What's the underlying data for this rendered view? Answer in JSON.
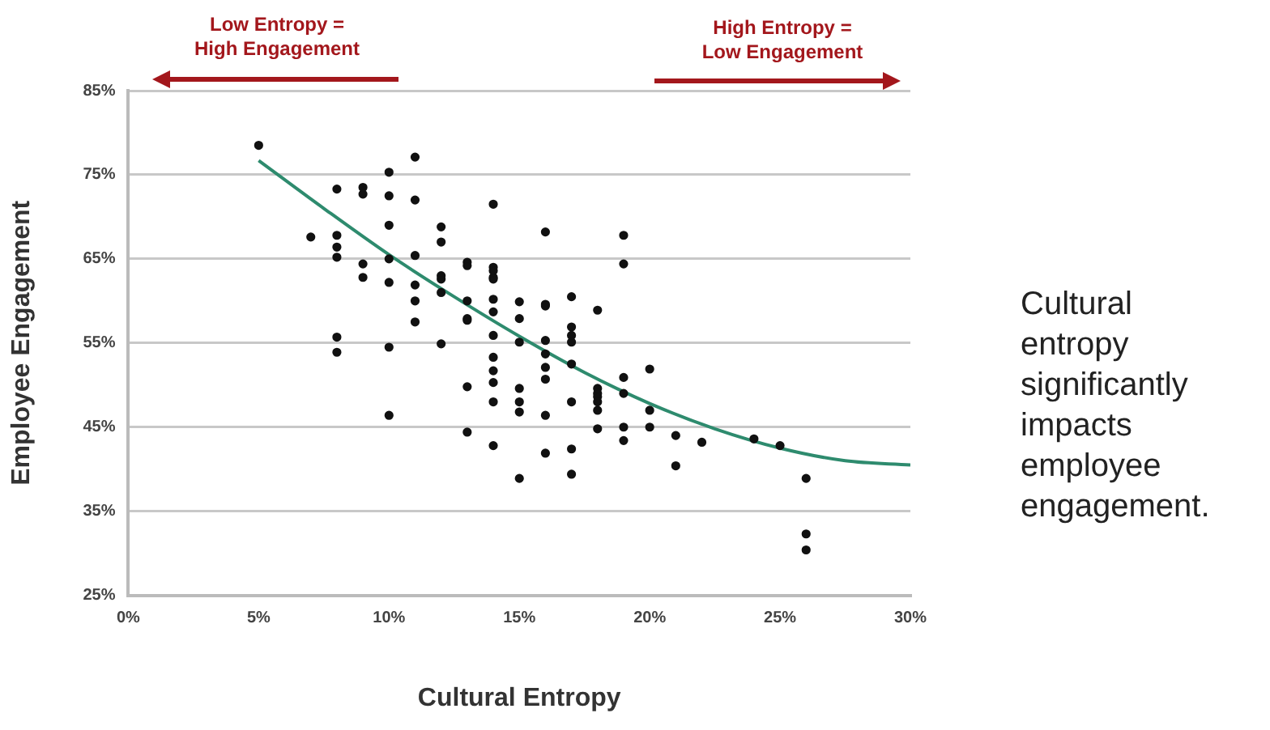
{
  "chart_data": {
    "type": "scatter",
    "xlabel": "Cultural Entropy",
    "ylabel": "Employee Engagement",
    "annotations": [
      "Low Entropy = High Engagement",
      "High Entropy = Low Engagement",
      "Cultural entropy significantly impacts employee engagement."
    ],
    "series": [
      {
        "color": "#111111",
        "x": [
          5,
          7,
          8,
          8,
          8,
          8,
          8,
          8,
          9,
          9,
          9,
          9,
          10,
          10,
          10,
          10,
          10,
          10,
          10,
          11,
          11,
          11,
          11,
          11,
          11,
          12,
          12,
          12,
          12,
          12,
          12,
          13,
          13,
          13,
          13,
          13,
          13,
          13,
          14,
          14,
          14,
          14,
          14,
          14,
          14,
          14,
          14,
          14,
          14,
          14,
          14,
          15,
          15,
          15,
          15,
          15,
          15,
          15,
          16,
          16,
          16,
          16,
          16,
          16,
          16,
          16,
          16,
          17,
          17,
          17,
          17,
          17,
          17,
          17,
          17,
          18,
          18,
          18,
          18,
          18,
          18,
          18,
          19,
          19,
          19,
          19,
          19,
          19,
          20,
          20,
          20,
          21,
          21,
          22,
          24,
          25,
          26,
          26,
          26
        ],
        "values": [
          78.5,
          67.6,
          73.3,
          67.8,
          66.4,
          65.2,
          55.7,
          53.9,
          73.5,
          72.7,
          64.4,
          62.8,
          75.3,
          72.5,
          69.0,
          65.0,
          62.2,
          54.5,
          46.4,
          77.1,
          72.0,
          65.4,
          61.9,
          60.0,
          57.5,
          68.8,
          67.0,
          63.0,
          62.6,
          61.0,
          54.9,
          64.6,
          64.2,
          60.0,
          57.9,
          57.7,
          49.8,
          44.4,
          71.5,
          64.0,
          63.6,
          62.8,
          62.6,
          60.2,
          58.7,
          55.9,
          53.3,
          51.7,
          50.3,
          48.0,
          42.8,
          59.9,
          57.9,
          55.1,
          49.6,
          48.0,
          46.8,
          38.9,
          68.2,
          59.6,
          59.4,
          55.3,
          53.7,
          52.1,
          50.7,
          46.4,
          41.9,
          60.5,
          56.9,
          55.9,
          55.1,
          52.5,
          48.0,
          42.4,
          39.4,
          58.9,
          49.6,
          49.0,
          48.6,
          48.0,
          47.0,
          44.8,
          67.8,
          64.4,
          50.9,
          49.0,
          45.0,
          43.4,
          51.9,
          47.0,
          45.0,
          44.0,
          40.4,
          43.2,
          43.6,
          42.8,
          38.9,
          32.3,
          30.4
        ]
      },
      {
        "type": "line",
        "color": "#2e8b6e",
        "marker": "none",
        "x": [
          5,
          7.5,
          10,
          12.5,
          15,
          17.5,
          20,
          22.5,
          25,
          27.5,
          30
        ],
        "values": [
          76.7,
          71.0,
          65.5,
          60.5,
          55.8,
          51.5,
          47.8,
          44.8,
          42.5,
          41.0,
          40.5
        ]
      }
    ],
    "xlim": [
      0,
      30
    ],
    "ylim": [
      25,
      85
    ],
    "xticks": [
      {
        "value": 0,
        "label": "0%"
      },
      {
        "value": 5,
        "label": "5%"
      },
      {
        "value": 10,
        "label": "10%"
      },
      {
        "value": 15,
        "label": "15%"
      },
      {
        "value": 20,
        "label": "20%"
      },
      {
        "value": 25,
        "label": "25%"
      },
      {
        "value": 30,
        "label": "30%"
      }
    ],
    "yticks": [
      {
        "value": 25,
        "label": "25%"
      },
      {
        "value": 35,
        "label": "35%"
      },
      {
        "value": 45,
        "label": "45%"
      },
      {
        "value": 55,
        "label": "55%"
      },
      {
        "value": 65,
        "label": "65%"
      },
      {
        "value": 75,
        "label": "75%"
      },
      {
        "value": 85,
        "label": "85%"
      }
    ],
    "grid": "y",
    "legend": false,
    "marker": "circle"
  }
}
